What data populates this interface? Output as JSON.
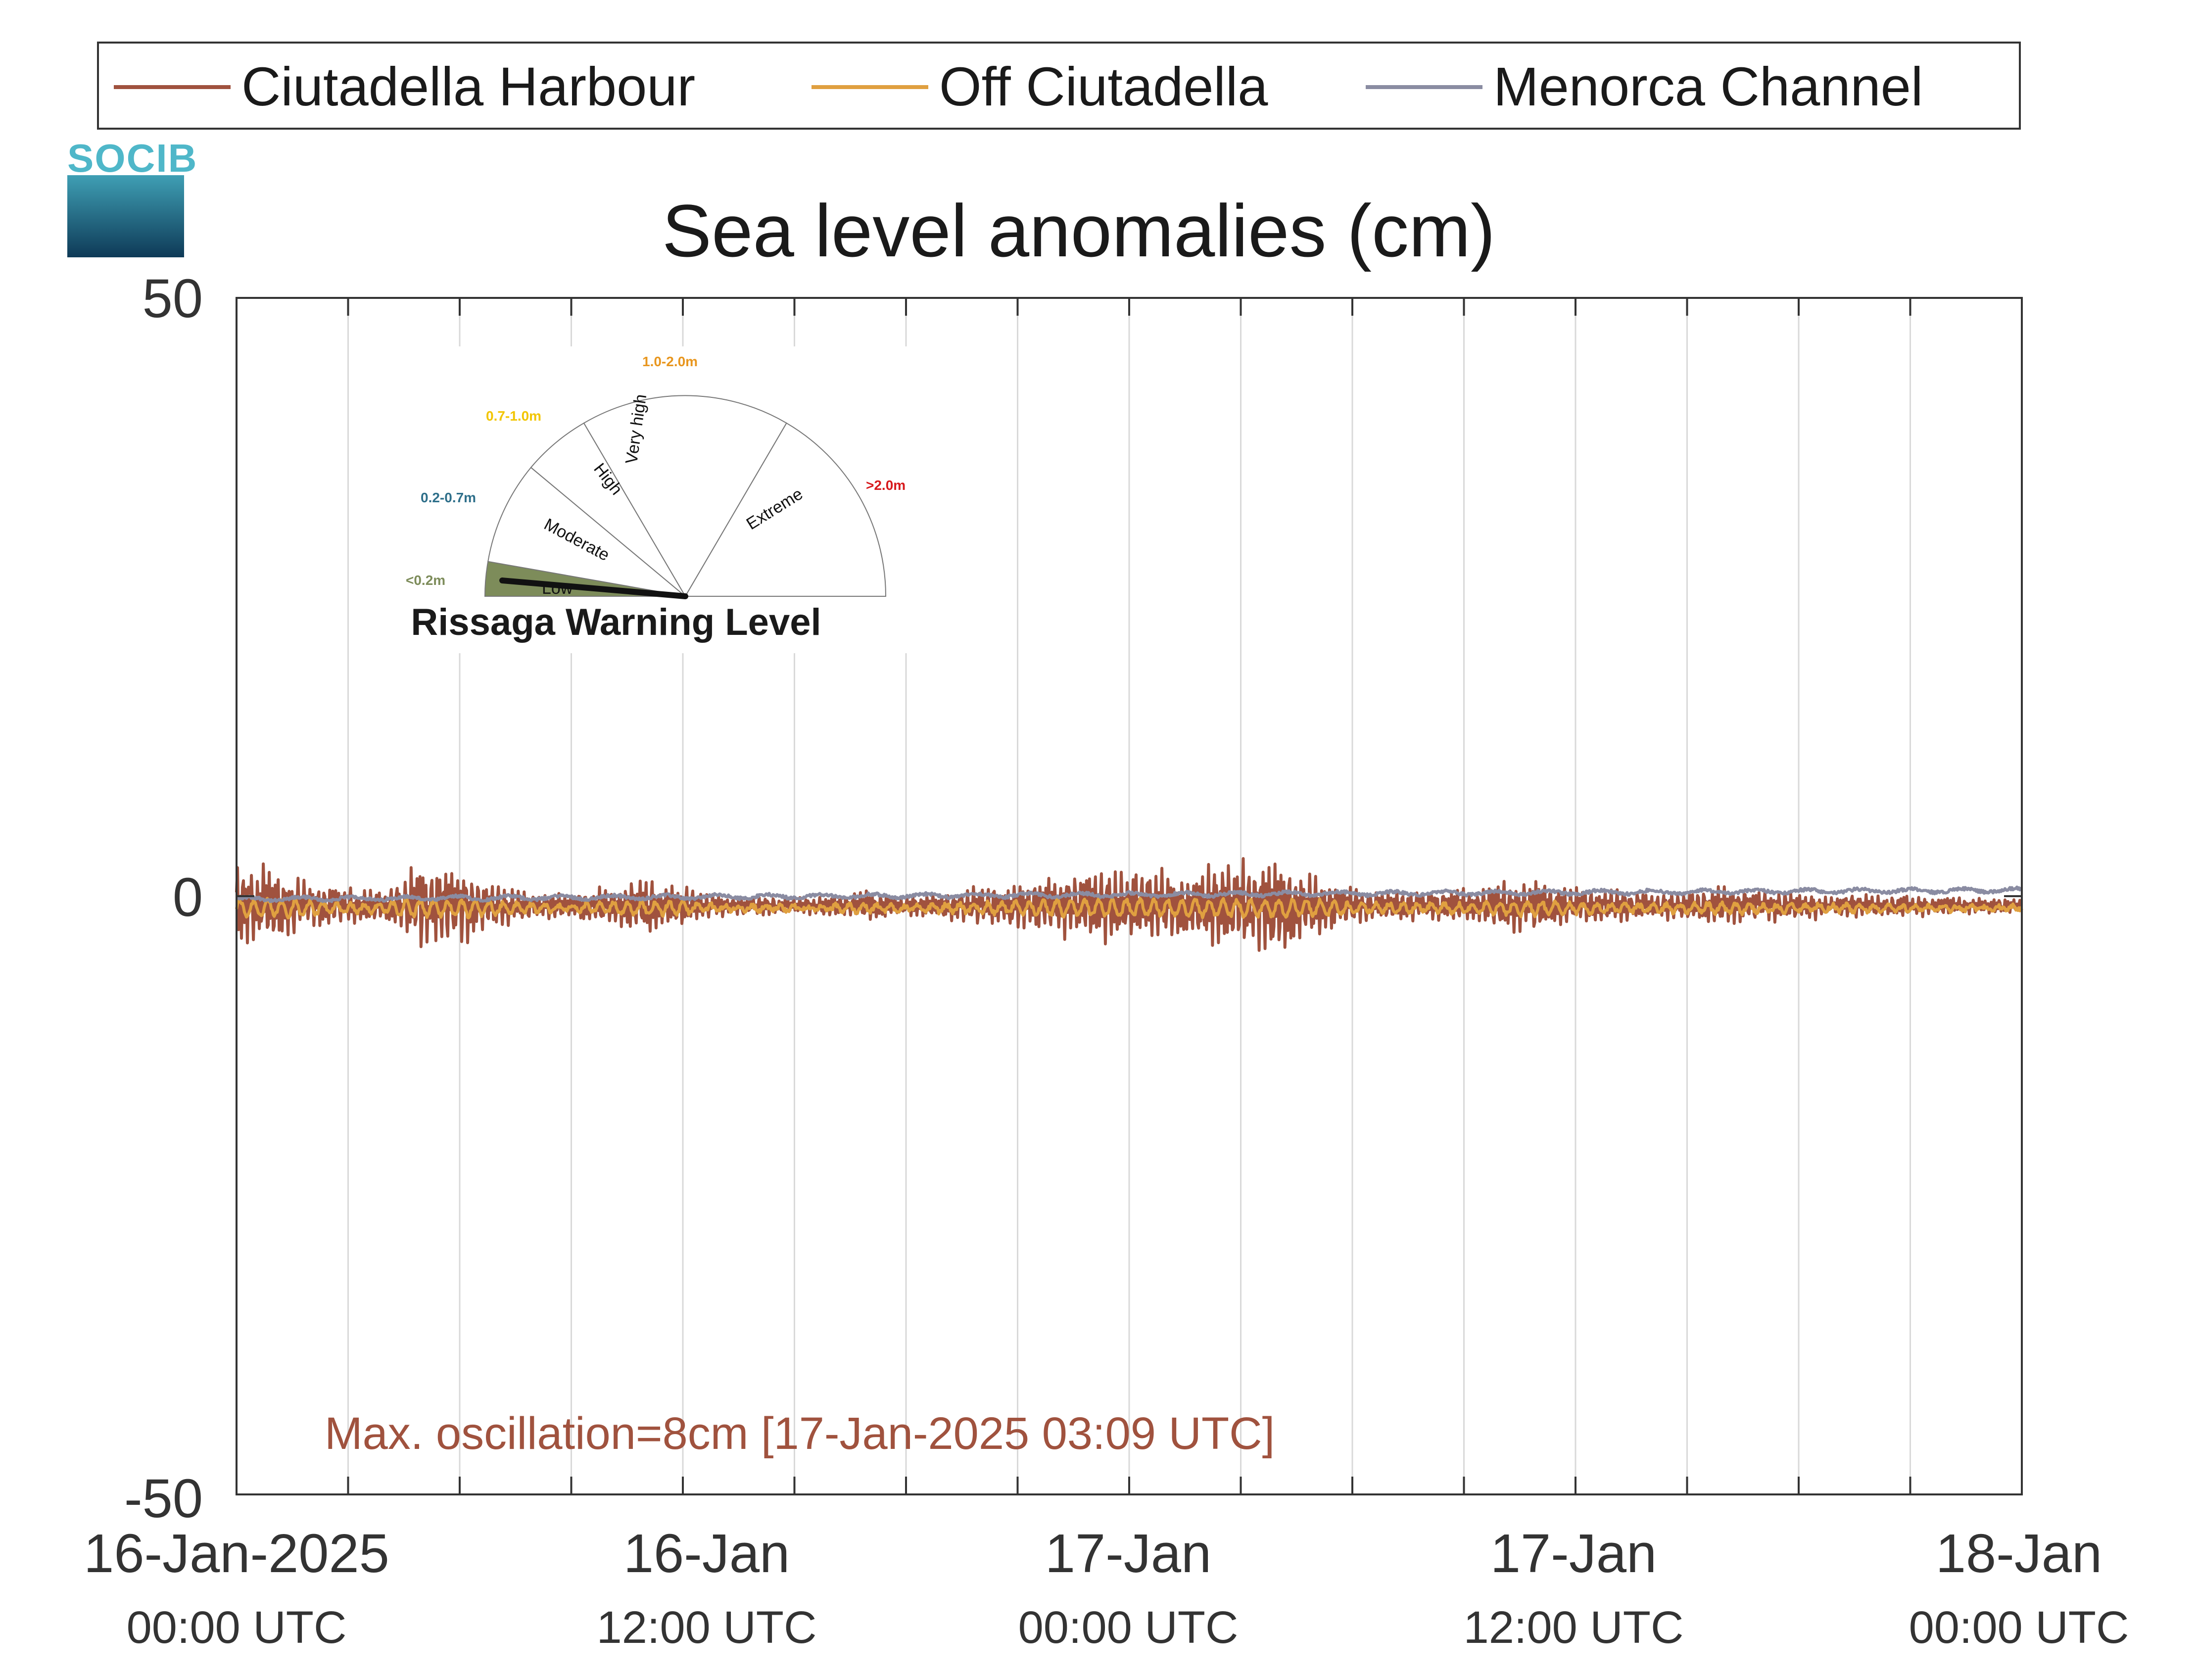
{
  "colors": {
    "ciutadella_harbour": "#a0523e",
    "off_ciutadella": "#e0a040",
    "menorca_channel": "#8a8ca2",
    "gauge_low_fill": "#7d8c5a",
    "label_low": "#7d8c5a",
    "label_moderate": "#2e6f8a",
    "label_high": "#f2c500",
    "label_very_high": "#e8961e",
    "label_extreme": "#d7191c"
  },
  "logo": {
    "text": "SOCIB"
  },
  "legend": {
    "items": [
      {
        "label": "Ciutadella Harbour",
        "color": "#a0523e"
      },
      {
        "label": "Off Ciutadella",
        "color": "#e0a040"
      },
      {
        "label": "Menorca Channel",
        "color": "#8a8ca2"
      }
    ]
  },
  "gauge": {
    "title": "Rissaga Warning Level",
    "sectors": [
      {
        "name": "Low",
        "range": "<0.2m"
      },
      {
        "name": "Moderate",
        "range": "0.2-0.7m"
      },
      {
        "name": "High",
        "range": "0.7-1.0m"
      },
      {
        "name": "Very high",
        "range": "1.0-2.0m"
      },
      {
        "name": "Extreme",
        "range": ">2.0m"
      }
    ],
    "current_level": "Low"
  },
  "chart_data": {
    "type": "line",
    "title": "Sea level anomalies (cm)",
    "xlabel": "",
    "ylabel": "",
    "ylim": [
      -50,
      50
    ],
    "yticks": [
      "50",
      "0",
      "-50"
    ],
    "xrange_hours": [
      0,
      48
    ],
    "xticks": [
      {
        "line1": "16-Jan-2025",
        "line2": "00:00 UTC"
      },
      {
        "line1": "16-Jan",
        "line2": "12:00 UTC"
      },
      {
        "line1": "17-Jan",
        "line2": "00:00 UTC"
      },
      {
        "line1": "17-Jan",
        "line2": "12:00 UTC"
      },
      {
        "line1": "18-Jan",
        "line2": "00:00 UTC"
      }
    ],
    "grid": "vertical every 3 hours",
    "legend_position": "top",
    "annotation": "Max. oscillation=8cm [17-Jan-2025 03:09 UTC]",
    "series": [
      {
        "name": "Ciutadella Harbour",
        "color": "#a0523e",
        "mean_cm": -0.8,
        "approx_range_cm": [
          -4.5,
          3.0
        ],
        "max_oscillation_cm": 8
      },
      {
        "name": "Off Ciutadella",
        "color": "#e0a040",
        "mean_cm": -1.0,
        "approx_range_cm": [
          -2.5,
          0.5
        ]
      },
      {
        "name": "Menorca Channel",
        "color": "#8a8ca2",
        "mean_cm": 0.0,
        "approx_range_cm": [
          -0.7,
          0.7
        ]
      }
    ]
  }
}
